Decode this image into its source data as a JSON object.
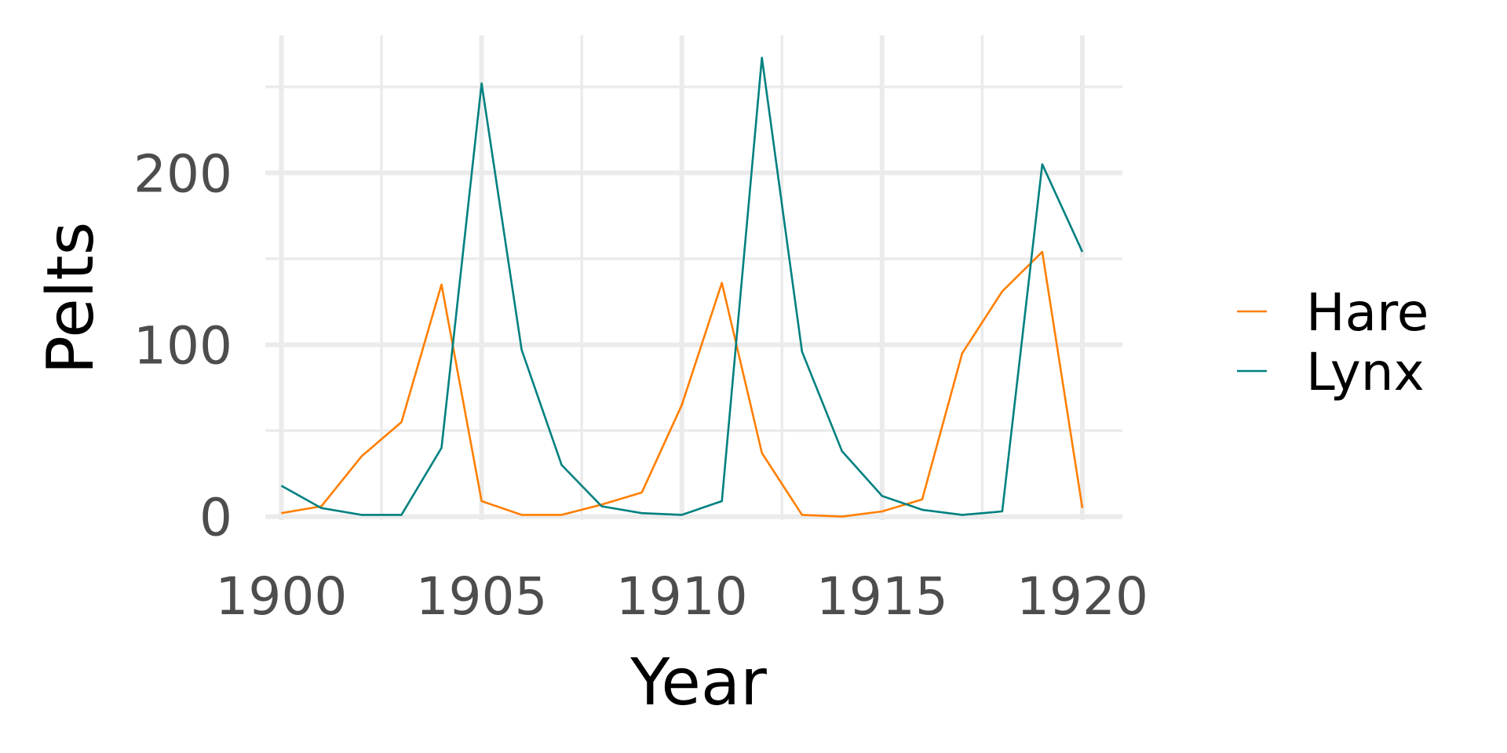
{
  "chart_data": {
    "type": "line",
    "xlabel": "Year",
    "ylabel": "Pelts",
    "xlim": [
      1899.6,
      1921
    ],
    "ylim": [
      -2,
      280
    ],
    "x_ticks": [
      1900,
      1905,
      1910,
      1915,
      1920
    ],
    "x_tick_labels": [
      "1900",
      "1905",
      "1910",
      "1915",
      "1920"
    ],
    "x_minor_ticks": [
      1902.5,
      1907.5,
      1912.5,
      1917.5
    ],
    "y_ticks": [
      0,
      100,
      200
    ],
    "y_tick_labels": [
      "0",
      "100",
      "200"
    ],
    "y_minor_ticks": [
      50,
      150,
      250
    ],
    "grid": true,
    "legend_position": "right",
    "x": [
      1900,
      1901,
      1902,
      1903,
      1904,
      1905,
      1906,
      1907,
      1908,
      1909,
      1910,
      1911,
      1912,
      1913,
      1914,
      1915,
      1916,
      1917,
      1918,
      1919,
      1920
    ],
    "series": [
      {
        "name": "Hare",
        "color": "#ff7f00",
        "values": [
          2,
          6,
          35,
          55,
          135,
          9,
          1,
          1,
          7,
          14,
          65,
          136,
          37,
          1,
          0,
          3,
          10,
          95,
          131,
          154,
          5
        ]
      },
      {
        "name": "Lynx",
        "color": "#008080",
        "values": [
          18,
          5,
          1,
          1,
          40,
          252,
          97,
          30,
          6,
          2,
          1,
          9,
          267,
          96,
          38,
          12,
          4,
          1,
          3,
          205,
          154
        ]
      }
    ]
  }
}
